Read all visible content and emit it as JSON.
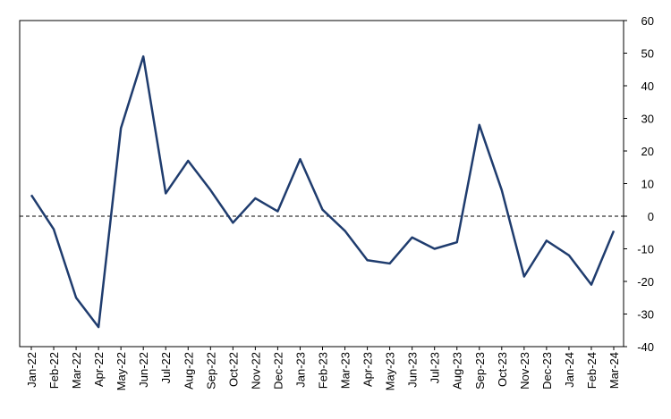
{
  "chart_data": {
    "type": "line",
    "categories": [
      "Jan-22",
      "Feb-22",
      "Mar-22",
      "Apr-22",
      "May-22",
      "Jun-22",
      "Jul-22",
      "Aug-22",
      "Sep-22",
      "Oct-22",
      "Nov-22",
      "Dec-22",
      "Jan-23",
      "Feb-23",
      "Mar-23",
      "Apr-23",
      "May-23",
      "Jun-23",
      "Jul-23",
      "Aug-23",
      "Sep-23",
      "Oct-23",
      "Nov-23",
      "Dec-23",
      "Jan-24",
      "Feb-24",
      "Mar-24"
    ],
    "values": [
      6.5,
      -4,
      -25,
      -34,
      27,
      49,
      7,
      17,
      8,
      -2,
      5.5,
      1.5,
      17.5,
      2,
      -4.5,
      -13.5,
      -14.5,
      -6.5,
      -10,
      -8,
      28,
      8,
      -18.5,
      -7.5,
      -12,
      -21,
      -4.5
    ],
    "color": "#1f3c6e",
    "ylim": [
      -40,
      60
    ],
    "yticks": [
      -40,
      -30,
      -20,
      -10,
      0,
      10,
      20,
      30,
      40,
      50,
      60
    ],
    "y_axis_side": "right",
    "reference_line": 0
  }
}
